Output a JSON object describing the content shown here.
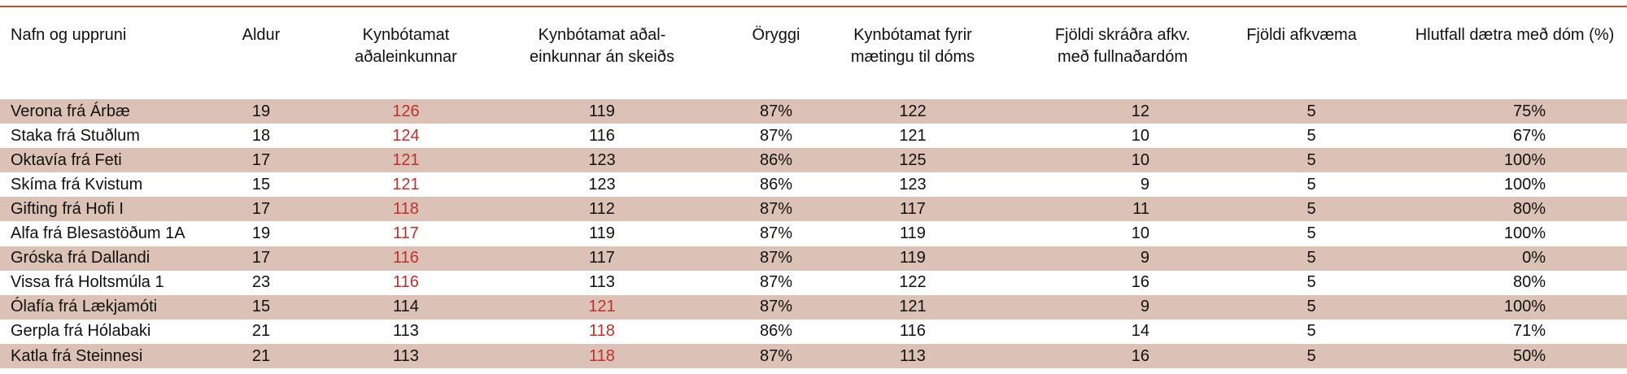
{
  "table": {
    "header": [
      "Nafn og uppruni",
      "Aldur",
      "Kynbótamat\naðaleinkunnar",
      "Kynbótamat aðal-\neinkunnar án skeiðs",
      "Öryggi",
      "Kynbótamat fyrir\nmætingu til dóms",
      "Fjöldi skráðra afkv.\nmeð fullnaðardóm",
      "Fjöldi afkvæma",
      "Hlutfall dætra með dóm (%)"
    ],
    "rows": [
      [
        "Verona frá Árbæ",
        "19",
        "126",
        "119",
        "87%",
        "122",
        "12",
        "5",
        "75%"
      ],
      [
        "Staka frá Stuðlum",
        "18",
        "124",
        "116",
        "87%",
        "121",
        "10",
        "5",
        "67%"
      ],
      [
        "Oktavía frá Feti",
        "17",
        "121",
        "123",
        "86%",
        "125",
        "10",
        "5",
        "100%"
      ],
      [
        "Skíma frá Kvistum",
        "15",
        "121",
        "123",
        "86%",
        "123",
        "9",
        "5",
        "100%"
      ],
      [
        "Gifting frá Hofi I",
        "17",
        "118",
        "112",
        "87%",
        "117",
        "11",
        "5",
        "80%"
      ],
      [
        "Alfa frá Blesastöðum 1A",
        "19",
        "117",
        "119",
        "87%",
        "119",
        "10",
        "5",
        "100%"
      ],
      [
        "Gróska frá Dallandi",
        "17",
        "116",
        "117",
        "87%",
        "119",
        "9",
        "5",
        "0%"
      ],
      [
        "Vissa frá Holtsmúla 1",
        "23",
        "116",
        "113",
        "87%",
        "122",
        "16",
        "5",
        "80%"
      ],
      [
        "Ólafía frá Lækjamóti",
        "15",
        "114",
        "121",
        "87%",
        "121",
        "9",
        "5",
        "100%"
      ],
      [
        "Gerpla frá Hólabaki",
        "21",
        "113",
        "118",
        "86%",
        "116",
        "14",
        "5",
        "71%"
      ],
      [
        "Katla frá Steinnesi",
        "21",
        "113",
        "118",
        "87%",
        "113",
        "16",
        "5",
        "50%"
      ]
    ],
    "highlight_color": "#c0302b",
    "highlighted_cells": [
      [
        0,
        2
      ],
      [
        1,
        2
      ],
      [
        2,
        2
      ],
      [
        3,
        2
      ],
      [
        4,
        2
      ],
      [
        5,
        2
      ],
      [
        6,
        2
      ],
      [
        7,
        2
      ],
      [
        8,
        3
      ],
      [
        9,
        3
      ],
      [
        10,
        3
      ]
    ],
    "stripe_color": "#dcc2b6"
  }
}
